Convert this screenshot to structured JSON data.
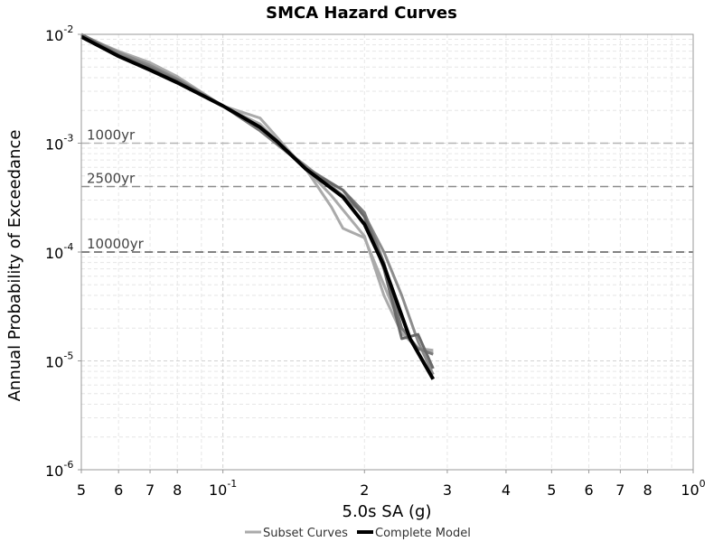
{
  "chart_data": {
    "type": "line",
    "title": "SMCA Hazard Curves",
    "xlabel": "5.0s SA (g)",
    "ylabel": "Annual Probability of Exceedance",
    "xscale": "log",
    "yscale": "log",
    "xlim": [
      0.05,
      1.0
    ],
    "ylim": [
      1e-06,
      0.01
    ],
    "grid": true,
    "x_ticks": [
      {
        "value": 0.05,
        "base": "5",
        "exp": ""
      },
      {
        "value": 0.06,
        "base": "6",
        "exp": ""
      },
      {
        "value": 0.07,
        "base": "7",
        "exp": ""
      },
      {
        "value": 0.08,
        "base": "8",
        "exp": ""
      },
      {
        "value": 0.1,
        "base": "10",
        "exp": "-1"
      },
      {
        "value": 0.2,
        "base": "2",
        "exp": ""
      },
      {
        "value": 0.3,
        "base": "3",
        "exp": ""
      },
      {
        "value": 0.4,
        "base": "4",
        "exp": ""
      },
      {
        "value": 0.5,
        "base": "5",
        "exp": ""
      },
      {
        "value": 0.6,
        "base": "6",
        "exp": ""
      },
      {
        "value": 0.7,
        "base": "7",
        "exp": ""
      },
      {
        "value": 0.8,
        "base": "8",
        "exp": ""
      },
      {
        "value": 1.0,
        "base": "10",
        "exp": "0"
      }
    ],
    "y_ticks": [
      {
        "value": 0.01,
        "base": "10",
        "exp": "-2"
      },
      {
        "value": 0.001,
        "base": "10",
        "exp": "-3"
      },
      {
        "value": 0.0001,
        "base": "10",
        "exp": "-4"
      },
      {
        "value": 1e-05,
        "base": "10",
        "exp": "-5"
      },
      {
        "value": 1e-06,
        "base": "10",
        "exp": "-6"
      }
    ],
    "reference_lines": [
      {
        "label": "1000yr",
        "y": 0.001,
        "color": "#b4b4b4"
      },
      {
        "label": "2500yr",
        "y": 0.0004,
        "color": "#8c8c8c"
      },
      {
        "label": "10000yr",
        "y": 0.0001,
        "color": "#5a5a5a"
      }
    ],
    "series": [
      {
        "name": "Subset Curves",
        "color": "#aaaaaa",
        "width": 3,
        "group": "subset",
        "x": [
          0.05,
          0.06,
          0.07,
          0.08,
          0.1,
          0.12,
          0.15,
          0.17,
          0.18,
          0.2,
          0.22,
          0.24,
          0.26,
          0.28
        ],
        "y": [
          0.0095,
          0.0062,
          0.0047,
          0.0036,
          0.0022,
          0.0015,
          0.00058,
          0.00026,
          0.000165,
          0.000135,
          5e-05,
          2e-05,
          1.3e-05,
          1.2e-05
        ]
      },
      {
        "name": "Subset Curves",
        "color": "#aaaaaa",
        "width": 3,
        "group": "subset",
        "x": [
          0.05,
          0.06,
          0.07,
          0.08,
          0.1,
          0.12,
          0.14,
          0.17,
          0.2,
          0.22,
          0.24,
          0.26,
          0.28
        ],
        "y": [
          0.0098,
          0.007,
          0.0055,
          0.0041,
          0.0022,
          0.0017,
          0.0008,
          0.00033,
          0.00014,
          4e-05,
          1.8e-05,
          1.3e-05,
          1.25e-05
        ]
      },
      {
        "name": "Subset Curves",
        "color": "#8c8c8c",
        "width": 3,
        "group": "subset",
        "x": [
          0.05,
          0.06,
          0.07,
          0.08,
          0.1,
          0.12,
          0.15,
          0.18,
          0.2,
          0.22,
          0.24,
          0.26,
          0.28
        ],
        "y": [
          0.01,
          0.0068,
          0.0052,
          0.0039,
          0.0022,
          0.0013,
          0.00062,
          0.00033,
          0.00022,
          0.0001,
          4e-05,
          1.5e-05,
          7.5e-06
        ]
      },
      {
        "name": "Subset Curves",
        "color": "#7a7a7a",
        "width": 3,
        "group": "subset",
        "x": [
          0.05,
          0.06,
          0.07,
          0.08,
          0.1,
          0.12,
          0.15,
          0.18,
          0.2,
          0.22,
          0.24,
          0.26,
          0.28
        ],
        "y": [
          0.01,
          0.0065,
          0.005,
          0.0038,
          0.0022,
          0.0013,
          0.0006,
          0.00037,
          0.00023,
          8e-05,
          2e-05,
          1.3e-05,
          1.15e-05
        ]
      },
      {
        "name": "Subset Curves",
        "color": "#696969",
        "width": 3,
        "group": "subset",
        "x": [
          0.05,
          0.06,
          0.07,
          0.08,
          0.1,
          0.12,
          0.15,
          0.18,
          0.2,
          0.22,
          0.24,
          0.26,
          0.28
        ],
        "y": [
          0.0099,
          0.0064,
          0.0048,
          0.0037,
          0.0022,
          0.0014,
          0.00058,
          0.00037,
          0.00021,
          7e-05,
          1.6e-05,
          1.75e-05,
          8.5e-06
        ]
      },
      {
        "name": "Complete Model",
        "color": "#000000",
        "width": 4,
        "group": "complete",
        "x": [
          0.05,
          0.06,
          0.07,
          0.08,
          0.1,
          0.12,
          0.13,
          0.15,
          0.18,
          0.2,
          0.22,
          0.25,
          0.28
        ],
        "y": [
          0.0095,
          0.0063,
          0.0047,
          0.0036,
          0.0022,
          0.0014,
          0.00105,
          0.00058,
          0.00032,
          0.00018,
          7.5e-05,
          1.6e-05,
          6.8e-06
        ]
      }
    ],
    "legend": {
      "placement": "bottom-center",
      "items": [
        {
          "label": "Subset Curves",
          "color": "#aaaaaa"
        },
        {
          "label": "Complete Model",
          "color": "#000000"
        }
      ]
    }
  }
}
